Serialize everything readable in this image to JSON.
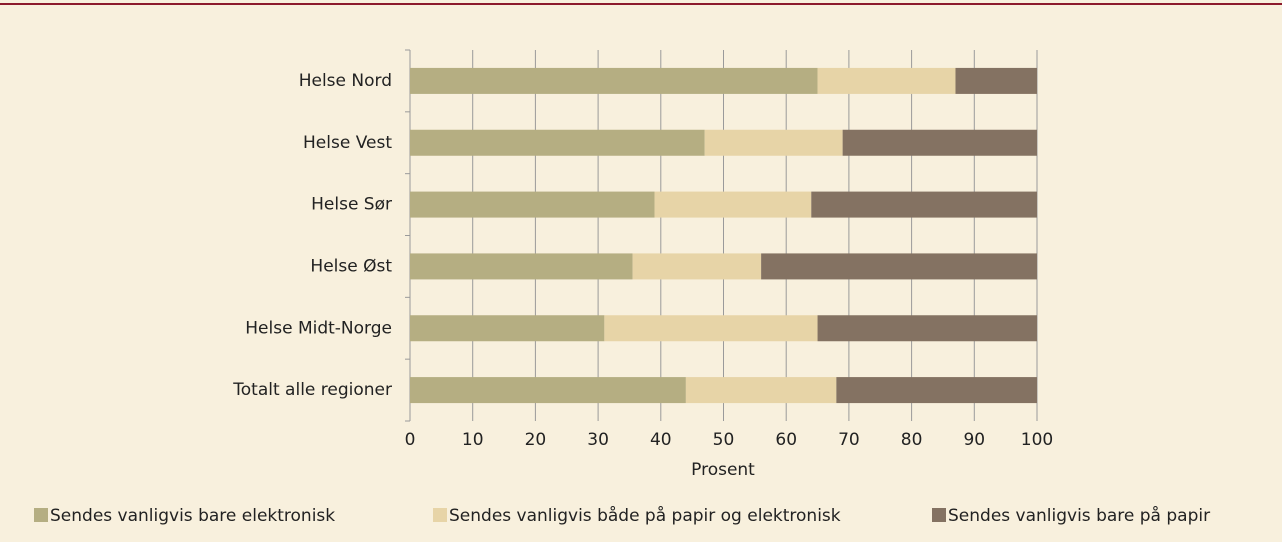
{
  "chart_data": {
    "type": "stacked-barh",
    "categories": [
      "Helse Nord",
      "Helse Vest",
      "Helse Sør",
      "Helse Øst",
      "Helse Midt-Norge",
      "Totalt alle regioner"
    ],
    "series": [
      {
        "name": "Sendes vanligvis bare elektronisk",
        "color": "#b5ae82",
        "values": [
          65,
          47,
          39,
          35.5,
          31,
          44
        ]
      },
      {
        "name": "Sendes vanligvis både på papir og elektronisk",
        "color": "#e7d4a7",
        "values": [
          22,
          22,
          25,
          20.5,
          34,
          24
        ]
      },
      {
        "name": "Sendes vanligvis bare på papir",
        "color": "#847262",
        "values": [
          13,
          31,
          36,
          44,
          35,
          32
        ]
      }
    ],
    "xlim": [
      0,
      100
    ],
    "xticks": [
      0,
      10,
      20,
      30,
      40,
      50,
      60,
      70,
      80,
      90,
      100
    ],
    "xlabel": "Prosent",
    "grid": true,
    "legend": "bottom"
  }
}
